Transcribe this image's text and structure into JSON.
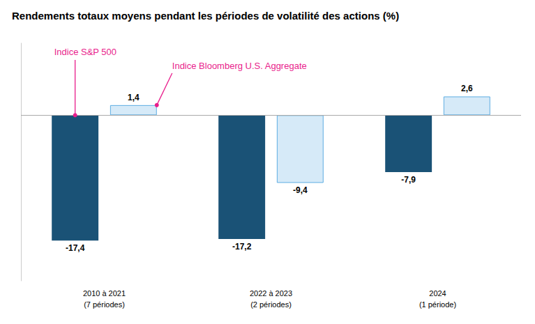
{
  "chart_data": {
    "type": "bar",
    "title": "Rendements totaux moyens pendant les périodes de volatilité des actions (%)",
    "categories": [
      "2010 à 2021\n(7 périodes)",
      "2022 à 2023\n(2 périodes)",
      "2024\n(1 période)"
    ],
    "series": [
      {
        "name": "Indice S&P 500",
        "color": "#1a5276",
        "values": [
          -17.4,
          -17.2,
          -7.9
        ],
        "value_labels": [
          "-17,4",
          "-17,2",
          "-7,9"
        ]
      },
      {
        "name": "Indice Bloomberg U.S. Aggregate",
        "color": "#d6eaf8",
        "values": [
          1.4,
          -9.4,
          2.6
        ],
        "value_labels": [
          "1,4",
          "-9,4",
          "2,6"
        ]
      }
    ],
    "ylim": [
      -23,
      10
    ],
    "grid": false,
    "data_labels": true,
    "tick_labels": "x"
  }
}
